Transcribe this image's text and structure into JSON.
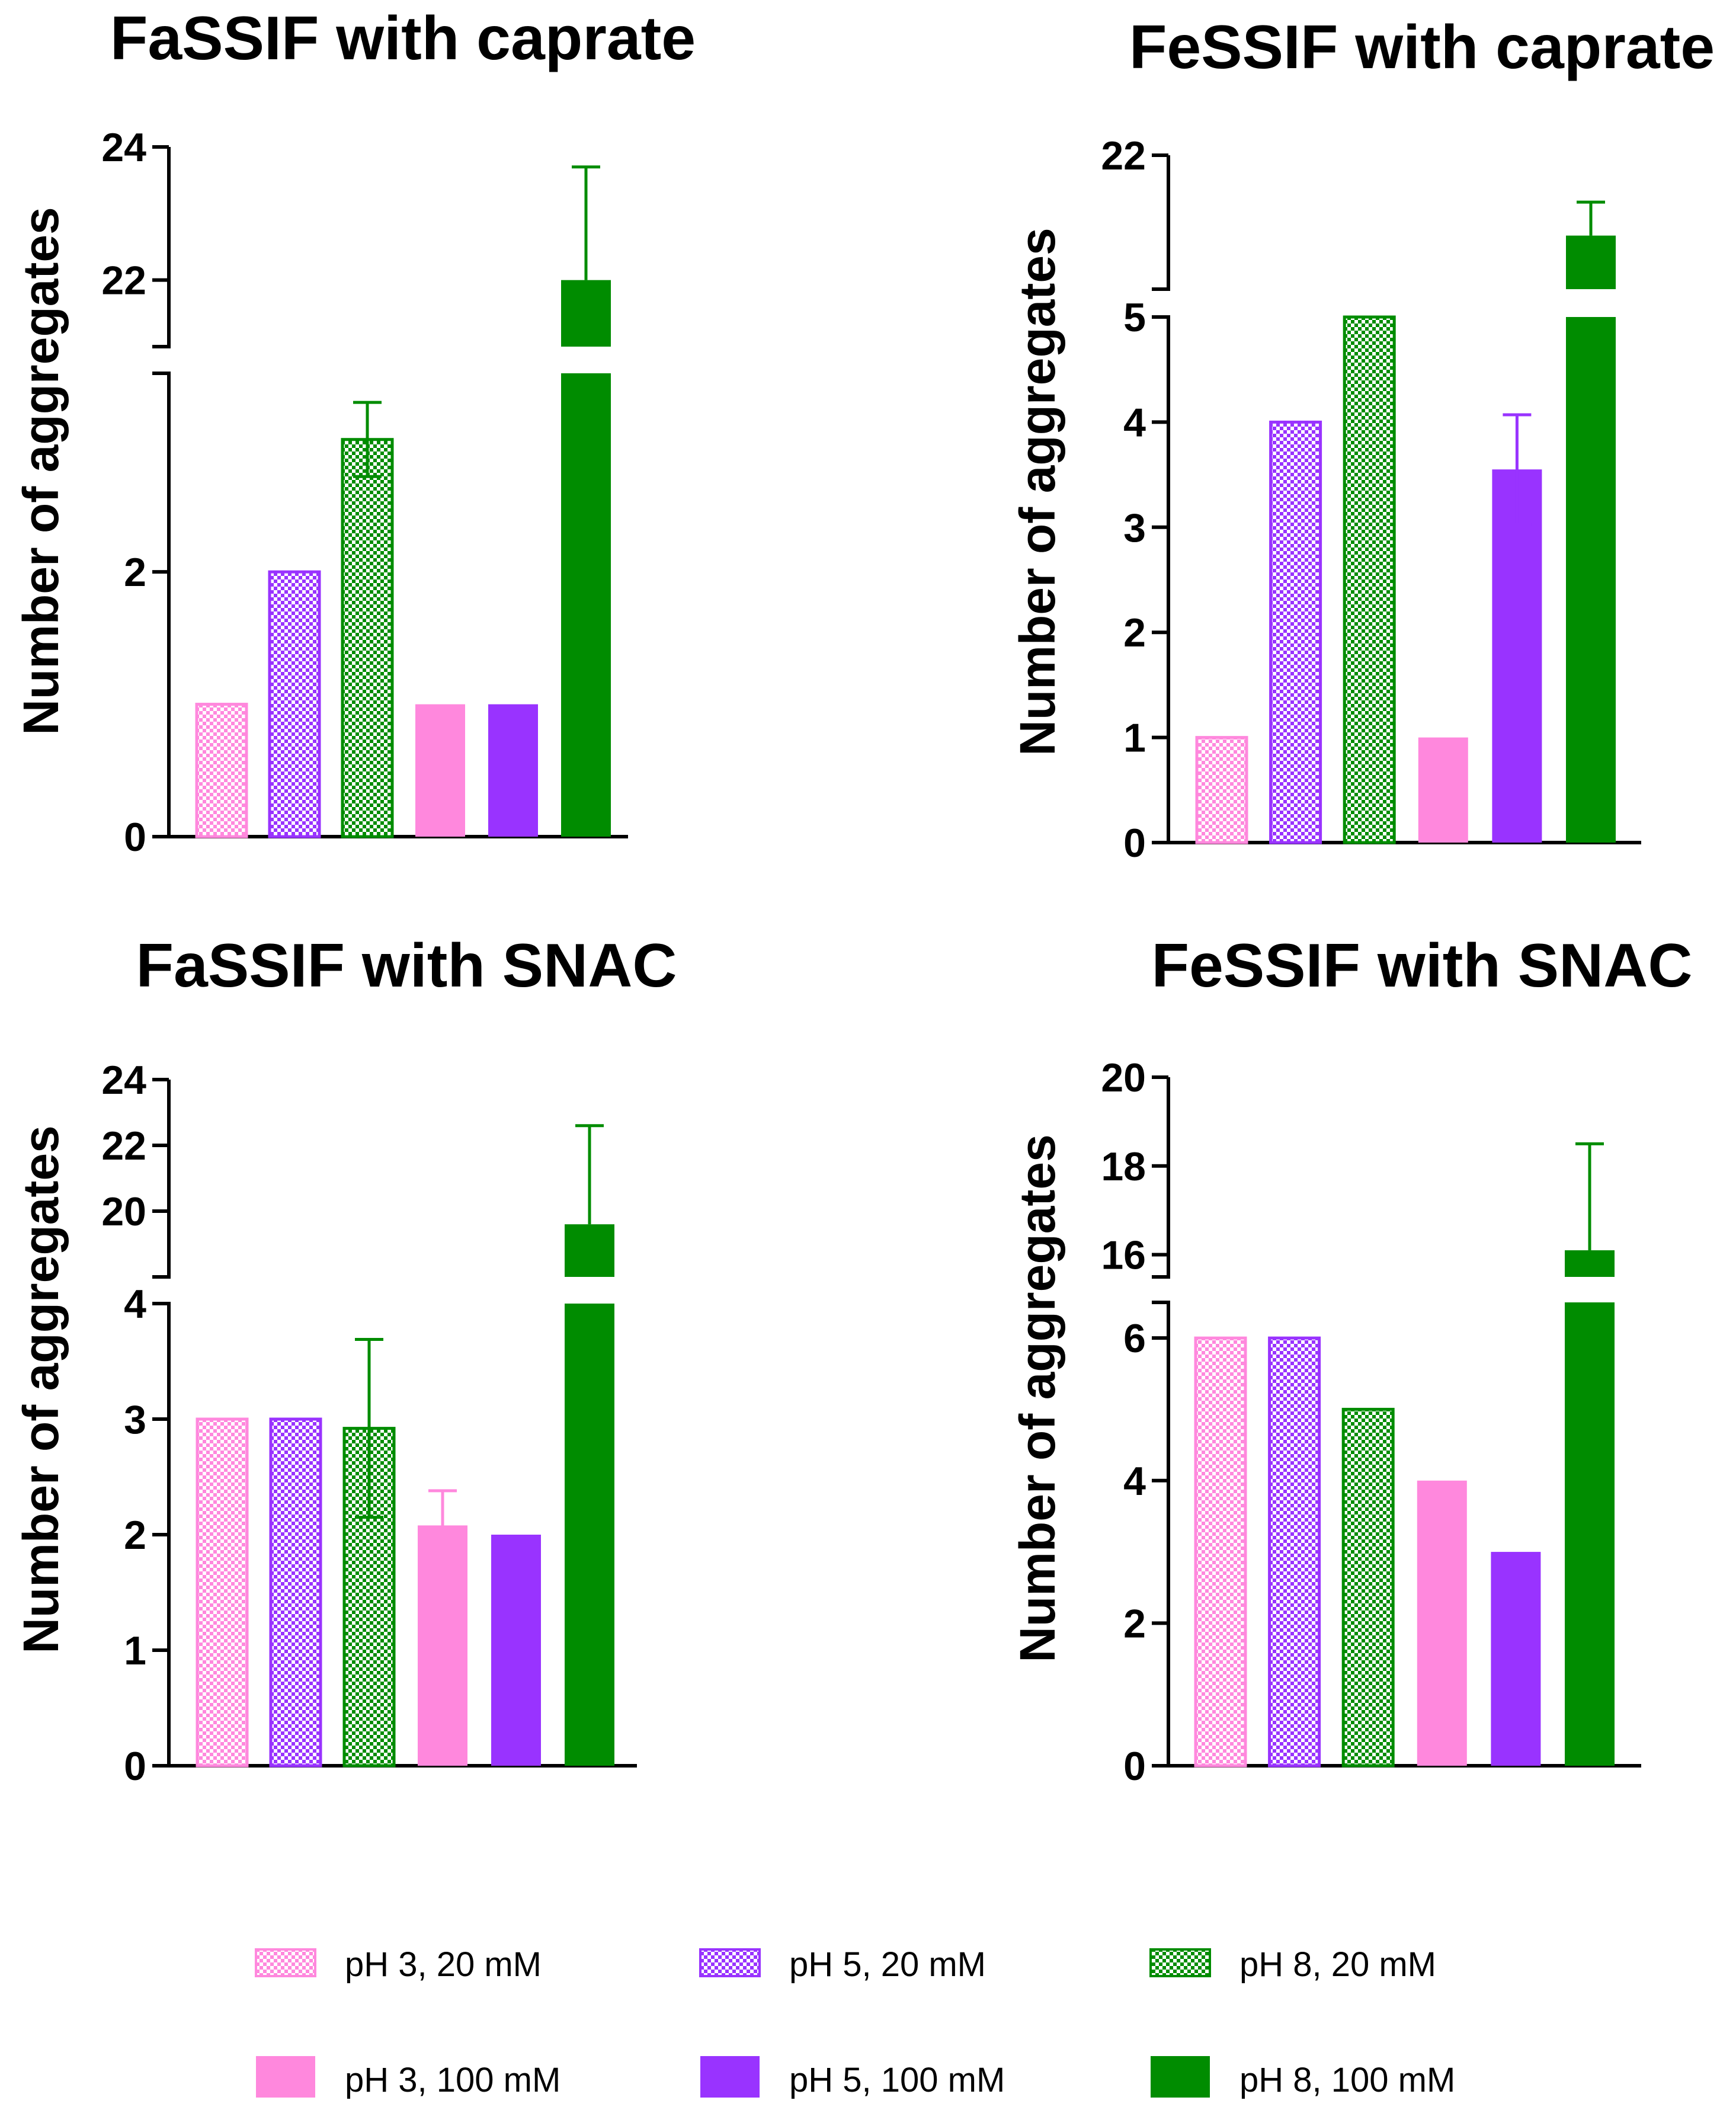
{
  "categories": [
    "pH 3, 20 mM",
    "pH 5, 20 mM",
    "pH 8, 20 mM",
    "pH 3, 100 mM",
    "pH 5, 100 mM",
    "pH 8, 100 mM"
  ],
  "colors": {
    "pink": "#ff88dd",
    "purple": "#9933ff",
    "green": "#008c00"
  },
  "chart_data": [
    {
      "type": "bar",
      "title": "FaSSIF with caprate",
      "ylabel": "Number of aggregates",
      "axis_break": true,
      "lower_ylim": [
        0,
        3.5
      ],
      "upper_ylim": [
        21,
        24
      ],
      "lower_ticks": [
        0,
        2
      ],
      "upper_ticks": [
        22,
        24
      ],
      "values": [
        1,
        2,
        3,
        1,
        1,
        22
      ],
      "errors": [
        0,
        0,
        0.28,
        0,
        0,
        1.7
      ]
    },
    {
      "type": "bar",
      "title": "FeSSIF with caprate",
      "ylabel": "Number of aggregates",
      "axis_break": true,
      "lower_ylim": [
        0,
        5
      ],
      "upper_ylim": [
        20,
        22
      ],
      "lower_ticks": [
        0,
        1,
        2,
        3,
        4,
        5
      ],
      "upper_ticks": [
        22
      ],
      "values": [
        1,
        4,
        5,
        1,
        3.55,
        20.8
      ],
      "errors": [
        0,
        0,
        0,
        0,
        0.52,
        0.5
      ]
    },
    {
      "type": "bar",
      "title": "FaSSIF with SNAC",
      "ylabel": "Number of aggregates",
      "axis_break": true,
      "lower_ylim": [
        0,
        4
      ],
      "upper_ylim": [
        18,
        24
      ],
      "lower_ticks": [
        0,
        1,
        2,
        3,
        4
      ],
      "upper_ticks": [
        20,
        22,
        24
      ],
      "values": [
        3,
        3,
        2.92,
        2.08,
        2,
        19.6
      ],
      "errors": [
        0,
        0,
        0.77,
        0.3,
        0,
        3.0
      ]
    },
    {
      "type": "bar",
      "title": "FeSSIF with SNAC",
      "ylabel": "Number of aggregates",
      "axis_break": true,
      "lower_ylim": [
        0,
        6.5
      ],
      "upper_ylim": [
        15.5,
        20
      ],
      "lower_ticks": [
        0,
        2,
        4,
        6
      ],
      "upper_ticks": [
        16,
        18,
        20
      ],
      "values": [
        6,
        6,
        5,
        4,
        3,
        16.1
      ],
      "errors": [
        0,
        0,
        0,
        0,
        0,
        2.4
      ]
    }
  ],
  "legend": [
    {
      "label": "pH 3, 20 mM",
      "color": "pink",
      "style": "checker"
    },
    {
      "label": "pH 5, 20 mM",
      "color": "purple",
      "style": "checker"
    },
    {
      "label": "pH 8, 20 mM",
      "color": "green",
      "style": "checker"
    },
    {
      "label": "pH 3, 100 mM",
      "color": "pink",
      "style": "solid"
    },
    {
      "label": "pH 5, 100 mM",
      "color": "purple",
      "style": "solid"
    },
    {
      "label": "pH 8, 100 mM",
      "color": "green",
      "style": "solid"
    }
  ]
}
